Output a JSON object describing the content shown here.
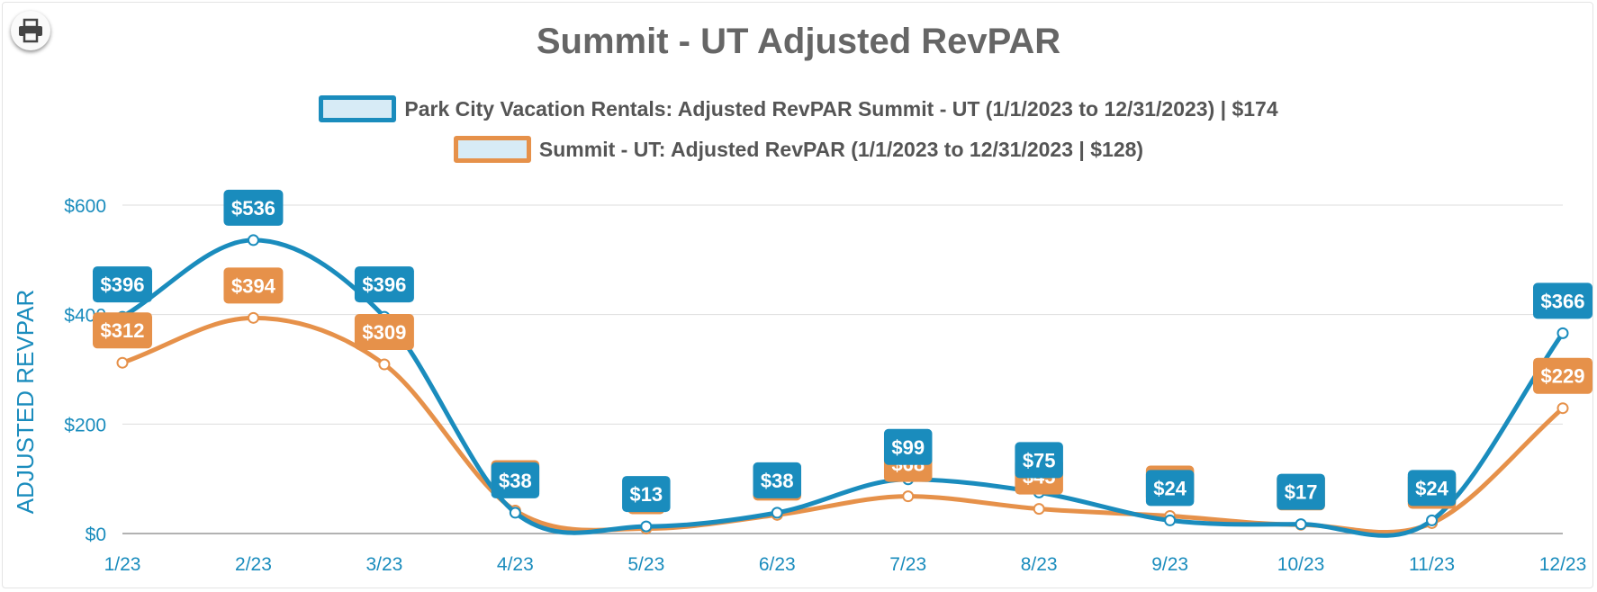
{
  "chart_data": {
    "type": "line",
    "title": "Summit - UT Adjusted RevPAR",
    "ylabel": "ADJUSTED REVPAR",
    "xlabel": "",
    "categories": [
      "1/23",
      "2/23",
      "3/23",
      "4/23",
      "5/23",
      "6/23",
      "7/23",
      "8/23",
      "9/23",
      "10/23",
      "11/23",
      "12/23"
    ],
    "y_ticks": [
      0,
      200,
      400,
      600
    ],
    "y_tick_labels": [
      "$0",
      "$200",
      "$400",
      "$600"
    ],
    "ylim": [
      0,
      600
    ],
    "grid": true,
    "legend_position": "top-center",
    "series": [
      {
        "name": "Park City Vacation Rentals: Adjusted RevPAR Summit - UT (1/1/2023 to 12/31/2023) | $174",
        "color": "#1a8cbd",
        "values": [
          396,
          536,
          396,
          38,
          13,
          38,
          99,
          75,
          24,
          17,
          24,
          366
        ],
        "labels": [
          "$396",
          "$536",
          "$396",
          "$38",
          "$13",
          "$38",
          "$99",
          "$75",
          "$24",
          "$17",
          "$24",
          "$366"
        ]
      },
      {
        "name": "Summit - UT: Adjusted RevPAR (1/1/2023 to 12/31/2023 | $128)",
        "color": "#e6914a",
        "values": [
          312,
          394,
          309,
          42,
          9,
          34,
          68,
          45,
          32,
          16,
          19,
          229
        ],
        "labels": [
          "$312",
          "$394",
          "$309",
          "$42",
          "$9",
          "$34",
          "$68",
          "$45",
          "$32",
          "$16",
          "$19",
          "$229"
        ]
      }
    ]
  },
  "toolbar": {
    "print_icon": "printer-icon"
  }
}
